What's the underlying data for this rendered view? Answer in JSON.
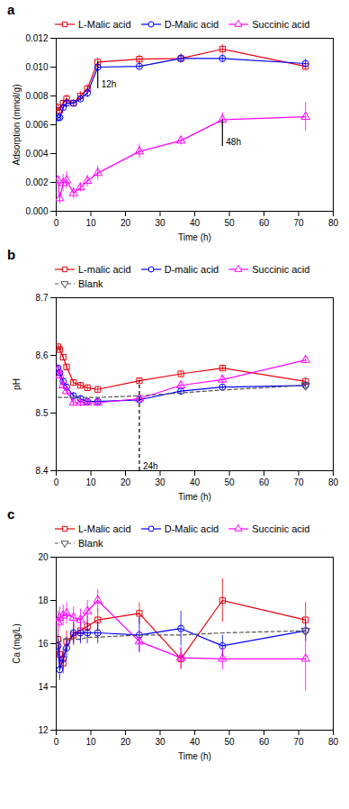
{
  "chart_data": [
    {
      "type": "line",
      "title": "a",
      "xlabel": "Time (h)",
      "ylabel": "Adsorption (mmol/g)",
      "xlim": [
        0,
        80
      ],
      "ylim": [
        0,
        0.012
      ],
      "xticks": [
        0,
        10,
        20,
        30,
        40,
        50,
        60,
        70,
        80
      ],
      "yticks": [
        {
          "value": 0,
          "label": "0.000"
        },
        0.002,
        0.004,
        0.006,
        0.008,
        {
          "value": 0.01,
          "label": "0.010"
        },
        0.012
      ],
      "series": [
        {
          "name": "L-Malic acid",
          "color": "#e8000d",
          "marker": "square",
          "line_style": "solid",
          "x": [
            0.5,
            1,
            2,
            3,
            5,
            7,
            9,
            12,
            24,
            36,
            48,
            72
          ],
          "values": [
            0.0072,
            0.007,
            0.0075,
            0.0078,
            0.0075,
            0.008,
            0.0085,
            0.01035,
            0.01055,
            0.0106,
            0.01125,
            0.01005
          ],
          "yerr": [
            0.0003,
            0.0002,
            0.0002,
            0.0003,
            0.0002,
            0.0003,
            0.0003,
            0.0003,
            0.0003,
            0.0003,
            0.0003,
            0.0003
          ]
        },
        {
          "name": "D-Malic acid",
          "color": "#0000ff",
          "marker": "circle",
          "line_style": "solid",
          "x": [
            0.5,
            1,
            2,
            3,
            5,
            7,
            9,
            12,
            24,
            36,
            48,
            72
          ],
          "values": [
            0.0065,
            0.0065,
            0.0072,
            0.0075,
            0.0075,
            0.0078,
            0.0082,
            0.01,
            0.01005,
            0.0106,
            0.0106,
            0.01025
          ],
          "yerr": [
            0.0003,
            0.0002,
            0.0002,
            0.0003,
            0.0002,
            0.0002,
            0.0003,
            0.0003,
            0.0002,
            0.0003,
            0.0003,
            0.0003
          ]
        },
        {
          "name": "Succinic acid",
          "color": "#ff00ff",
          "marker": "triangle-up",
          "line_style": "solid",
          "x": [
            0.5,
            1,
            2,
            3,
            5,
            7,
            9,
            12,
            24,
            36,
            48,
            72
          ],
          "values": [
            0.00215,
            0.0009,
            0.00195,
            0.00215,
            0.00125,
            0.00165,
            0.0021,
            0.00265,
            0.00415,
            0.0049,
            0.00635,
            0.00655
          ],
          "yerr": [
            0.0003,
            0.0004,
            0.0006,
            0.0006,
            0.0004,
            0.0003,
            0.0004,
            0.0005,
            0.0005,
            0.0003,
            0.0005,
            0.001
          ]
        }
      ],
      "annotations": [
        {
          "text": "12h",
          "x": 12,
          "y_top": 0.01035,
          "y_bottom": 0.0085,
          "line_style": "solid"
        },
        {
          "text": "48h",
          "x": 48,
          "y_top": 0.00635,
          "y_bottom": 0.0045,
          "line_style": "solid"
        }
      ]
    },
    {
      "type": "line",
      "title": "b",
      "xlabel": "Time (h)",
      "ylabel": "pH",
      "xlim": [
        0,
        80
      ],
      "ylim": [
        8.4,
        8.7
      ],
      "xticks": [
        0,
        10,
        20,
        30,
        40,
        50,
        60,
        70,
        80
      ],
      "yticks": [
        8.4,
        8.5,
        8.6,
        8.7
      ],
      "series": [
        {
          "name": "L-malic acid",
          "color": "#e8000d",
          "marker": "square",
          "line_style": "solid",
          "x": [
            0.5,
            1,
            2,
            3,
            5,
            7,
            9,
            12,
            24,
            36,
            48,
            72
          ],
          "values": [
            8.615,
            8.61,
            8.597,
            8.58,
            8.553,
            8.548,
            8.544,
            8.541,
            8.556,
            8.568,
            8.578,
            8.555
          ],
          "yerr": [
            0.005,
            0.005,
            0.005,
            0.005,
            0.005,
            0.005,
            0.005,
            0.005,
            0.005,
            0.005,
            0.005,
            0.007
          ]
        },
        {
          "name": "D-malic acid",
          "color": "#0000ff",
          "marker": "circle",
          "line_style": "solid",
          "x": [
            0.5,
            1,
            2,
            3,
            5,
            7,
            9,
            12,
            24,
            36,
            48,
            72
          ],
          "values": [
            8.578,
            8.57,
            8.555,
            8.545,
            8.53,
            8.525,
            8.52,
            8.52,
            8.523,
            8.538,
            8.545,
            8.548
          ],
          "yerr": [
            0.005,
            0.004,
            0.004,
            0.005,
            0.005,
            0.005,
            0.005,
            0.005,
            0.004,
            0.005,
            0.005,
            0.005
          ]
        },
        {
          "name": "Succinic acid",
          "color": "#ff00ff",
          "marker": "triangle-up",
          "line_style": "solid",
          "x": [
            0.5,
            1,
            2,
            3,
            5,
            7,
            9,
            12,
            24,
            36,
            48,
            72
          ],
          "values": [
            8.575,
            8.565,
            8.548,
            8.538,
            8.518,
            8.518,
            8.518,
            8.518,
            8.525,
            8.548,
            8.558,
            8.592
          ],
          "yerr": [
            0.006,
            0.006,
            0.006,
            0.006,
            0.007,
            0.007,
            0.006,
            0.007,
            0.005,
            0.005,
            0.006,
            0.006
          ]
        },
        {
          "name": "Blank",
          "color": "#555555",
          "marker": "triangle-down",
          "line_style": "dashed",
          "x": [
            0.5,
            1,
            2,
            3,
            5,
            7,
            9,
            12,
            24,
            36,
            48,
            72
          ],
          "values": [
            8.527,
            8.527,
            8.527,
            8.527,
            8.527,
            8.527,
            8.527,
            8.527,
            8.53,
            8.535,
            8.54,
            8.548
          ]
        }
      ],
      "annotations": [
        {
          "text": "24h",
          "x": 24,
          "y_top": 8.556,
          "y_bottom": 8.4,
          "line_style": "dashed"
        }
      ]
    },
    {
      "type": "line",
      "title": "c",
      "xlabel": "Time (h)",
      "ylabel": "Ca (mg/L)",
      "xlim": [
        0,
        80
      ],
      "ylim": [
        12,
        20
      ],
      "xticks": [
        0,
        10,
        20,
        30,
        40,
        50,
        60,
        70,
        80
      ],
      "yticks": [
        12,
        14,
        16,
        18,
        20
      ],
      "series": [
        {
          "name": "L-Malic acid",
          "color": "#e8000d",
          "marker": "square",
          "line_style": "solid",
          "x": [
            0.5,
            1,
            2,
            3,
            5,
            7,
            9,
            12,
            24,
            36,
            48,
            72
          ],
          "values": [
            16.2,
            15.5,
            15.1,
            16.1,
            16.4,
            16.6,
            16.8,
            17.1,
            17.4,
            15.3,
            18.0,
            17.1
          ],
          "yerr": [
            0.5,
            0.5,
            0.5,
            0.5,
            0.5,
            0.5,
            0.5,
            0.5,
            0.5,
            0.5,
            1.0,
            0.8
          ]
        },
        {
          "name": "D-Malic acid",
          "color": "#0000ff",
          "marker": "circle",
          "line_style": "solid",
          "x": [
            0.5,
            1,
            2,
            3,
            5,
            7,
            9,
            12,
            24,
            36,
            48,
            72
          ],
          "values": [
            15.9,
            14.8,
            15.3,
            15.8,
            16.5,
            16.5,
            16.5,
            16.5,
            16.4,
            16.7,
            15.9,
            16.6
          ],
          "yerr": [
            0.5,
            0.5,
            0.5,
            0.5,
            0.5,
            0.5,
            0.5,
            0.5,
            0.8,
            0.8,
            0.5,
            0.5
          ]
        },
        {
          "name": "Succinic acid",
          "color": "#ff00ff",
          "marker": "triangle-up",
          "line_style": "solid",
          "x": [
            0.5,
            1,
            2,
            3,
            5,
            7,
            9,
            12,
            24,
            36,
            48,
            72
          ],
          "values": [
            17.0,
            17.2,
            17.3,
            17.4,
            17.2,
            17.1,
            17.5,
            18.0,
            16.1,
            15.35,
            15.3,
            15.3
          ],
          "yerr": [
            0.5,
            0.5,
            0.5,
            0.5,
            0.5,
            0.5,
            0.5,
            0.5,
            0.5,
            0.5,
            0.5,
            1.5
          ]
        },
        {
          "name": "Blank",
          "color": "#555555",
          "marker": "triangle-down",
          "line_style": "dashed",
          "x": [
            0.5,
            1,
            2,
            3,
            5,
            7,
            9,
            12,
            24,
            36,
            48,
            72
          ],
          "values": [
            16.1,
            16.1,
            16.2,
            16.2,
            16.2,
            16.2,
            16.3,
            16.3,
            16.4,
            16.4,
            16.5,
            16.6
          ]
        }
      ]
    }
  ]
}
